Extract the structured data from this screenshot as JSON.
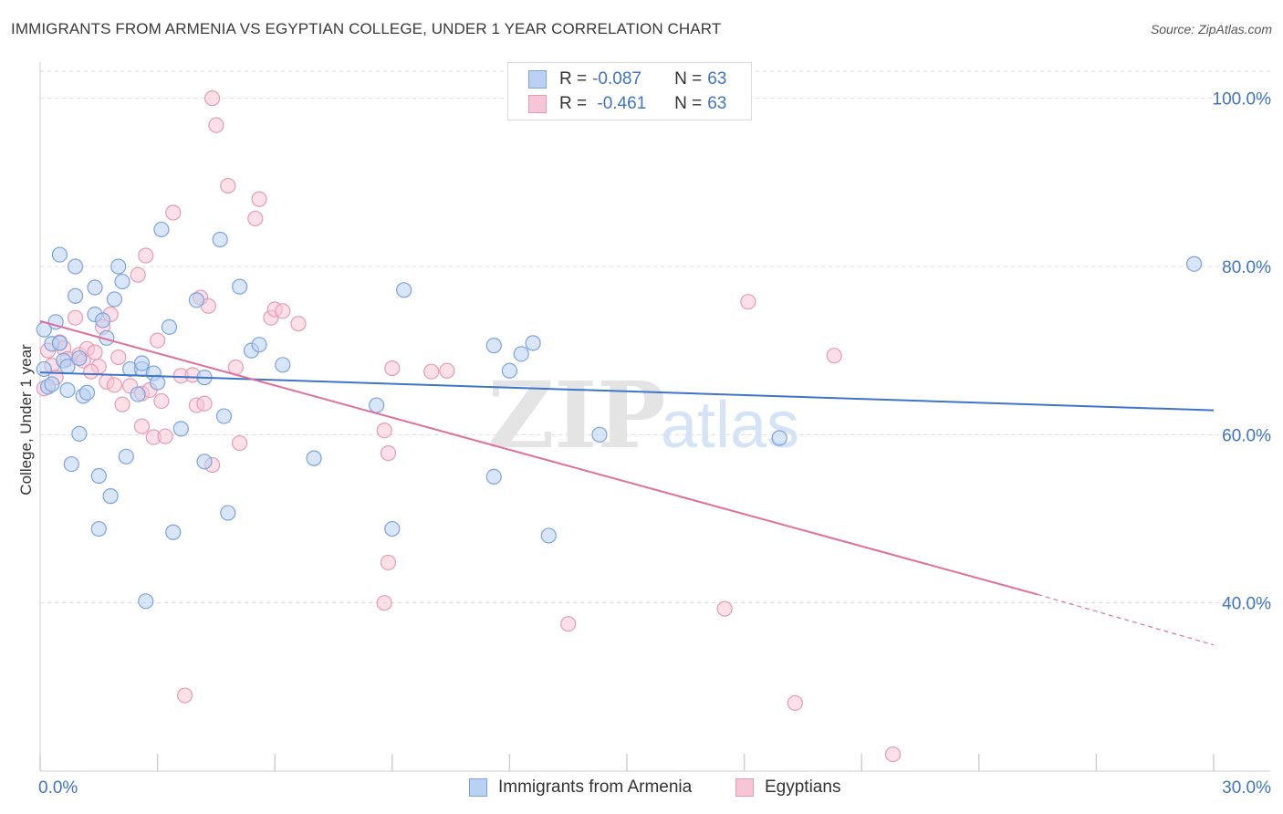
{
  "title": "IMMIGRANTS FROM ARMENIA VS EGYPTIAN COLLEGE, UNDER 1 YEAR CORRELATION CHART",
  "source": "Source: ZipAtlas.com",
  "watermark": {
    "zip": "ZIP",
    "atlas": "atlas"
  },
  "colors": {
    "blue": "#3f74c9",
    "blue_fill": "#b9d1f3",
    "pink": "#e0709a",
    "pink_fill": "#f7c6d6",
    "grid": "#dcdcdc",
    "axis_label": "#3f74c9"
  },
  "legend": {
    "rows": [
      {
        "r_label": "R =",
        "r_value": "-0.087",
        "n_label": "N =",
        "n_value": "63"
      },
      {
        "r_label": "R =",
        "r_value": " -0.461",
        "n_label": "N =",
        "n_value": "63"
      }
    ]
  },
  "bottom_legend": {
    "series1": "Immigrants from Armenia",
    "series2": "Egyptians"
  },
  "chart_data": {
    "type": "scatter",
    "title": "IMMIGRANTS FROM ARMENIA VS EGYPTIAN COLLEGE, UNDER 1 YEAR CORRELATION CHART",
    "xlabel": "",
    "ylabel": "College, Under 1 year",
    "xlim": [
      0,
      30
    ],
    "ylim": [
      20,
      103
    ],
    "x_tick_labels": [
      "0.0%",
      "30.0%"
    ],
    "y_ticks": [
      40,
      60,
      80,
      100
    ],
    "y_tick_labels": [
      "40.0%",
      "60.0%",
      "80.0%",
      "100.0%"
    ],
    "grid": true,
    "series": [
      {
        "name": "Immigrants from Armenia",
        "r": -0.087,
        "n": 63,
        "trend": {
          "x0": 0,
          "y0": 67.4,
          "x1": 30,
          "y1": 62.9
        },
        "points": [
          [
            0.1,
            72.5
          ],
          [
            0.1,
            67.8
          ],
          [
            0.2,
            65.7
          ],
          [
            0.3,
            70.8
          ],
          [
            0.4,
            73.4
          ],
          [
            0.5,
            70.9
          ],
          [
            0.6,
            68.8
          ],
          [
            0.7,
            68.1
          ],
          [
            0.5,
            81.4
          ],
          [
            0.9,
            80.0
          ],
          [
            0.9,
            76.5
          ],
          [
            0.7,
            65.3
          ],
          [
            1.1,
            64.6
          ],
          [
            1.2,
            65.0
          ],
          [
            1.0,
            60.1
          ],
          [
            0.8,
            56.5
          ],
          [
            1.4,
            77.5
          ],
          [
            1.4,
            74.3
          ],
          [
            1.6,
            73.6
          ],
          [
            1.7,
            71.5
          ],
          [
            1.5,
            55.1
          ],
          [
            1.8,
            52.7
          ],
          [
            1.5,
            48.8
          ],
          [
            2.0,
            80.0
          ],
          [
            1.9,
            76.1
          ],
          [
            2.1,
            78.2
          ],
          [
            2.3,
            67.8
          ],
          [
            2.2,
            57.4
          ],
          [
            2.5,
            64.8
          ],
          [
            2.6,
            67.8
          ],
          [
            2.6,
            68.5
          ],
          [
            2.7,
            40.2
          ],
          [
            2.9,
            67.3
          ],
          [
            3.1,
            84.4
          ],
          [
            3.3,
            72.8
          ],
          [
            3.4,
            48.4
          ],
          [
            3.6,
            60.7
          ],
          [
            4.0,
            76.0
          ],
          [
            4.2,
            66.8
          ],
          [
            4.2,
            56.8
          ],
          [
            4.6,
            83.2
          ],
          [
            4.7,
            62.2
          ],
          [
            4.8,
            50.7
          ],
          [
            5.1,
            77.6
          ],
          [
            5.4,
            70.0
          ],
          [
            5.6,
            70.7
          ],
          [
            6.2,
            68.3
          ],
          [
            7.0,
            57.2
          ],
          [
            9.3,
            77.2
          ],
          [
            8.6,
            63.5
          ],
          [
            9.0,
            48.8
          ],
          [
            11.6,
            70.6
          ],
          [
            11.6,
            55.0
          ],
          [
            12.0,
            67.6
          ],
          [
            12.3,
            69.6
          ],
          [
            12.6,
            70.9
          ],
          [
            13.0,
            48.0
          ],
          [
            14.3,
            60.0
          ],
          [
            18.9,
            59.6
          ],
          [
            29.5,
            80.3
          ],
          [
            0.3,
            66.0
          ],
          [
            1.0,
            69.1
          ],
          [
            3.0,
            66.2
          ]
        ]
      },
      {
        "name": "Egyptians",
        "r": -0.461,
        "n": 63,
        "trend": {
          "x0": 0,
          "y0": 73.5,
          "x1": 25.5,
          "y1": 41.0
        },
        "trend_dashed": {
          "x0": 25.5,
          "y0": 41.0,
          "x1": 30,
          "y1": 35.0
        },
        "points": [
          [
            0.1,
            65.5
          ],
          [
            0.3,
            68.2
          ],
          [
            0.4,
            66.8
          ],
          [
            0.5,
            71.0
          ],
          [
            0.6,
            70.3
          ],
          [
            0.7,
            69.0
          ],
          [
            0.9,
            73.9
          ],
          [
            1.0,
            69.5
          ],
          [
            1.1,
            68.8
          ],
          [
            1.2,
            70.2
          ],
          [
            1.4,
            69.8
          ],
          [
            1.5,
            68.1
          ],
          [
            1.6,
            72.8
          ],
          [
            1.7,
            66.3
          ],
          [
            1.8,
            74.3
          ],
          [
            1.9,
            65.9
          ],
          [
            2.0,
            69.2
          ],
          [
            2.1,
            63.6
          ],
          [
            2.3,
            65.8
          ],
          [
            2.5,
            79.0
          ],
          [
            2.6,
            64.9
          ],
          [
            2.6,
            61.0
          ],
          [
            2.7,
            81.3
          ],
          [
            2.8,
            65.3
          ],
          [
            2.9,
            59.7
          ],
          [
            3.0,
            71.2
          ],
          [
            3.1,
            64.0
          ],
          [
            3.2,
            59.8
          ],
          [
            3.4,
            86.4
          ],
          [
            3.6,
            67.0
          ],
          [
            3.7,
            29.0
          ],
          [
            3.9,
            67.1
          ],
          [
            4.0,
            63.5
          ],
          [
            4.1,
            76.3
          ],
          [
            4.2,
            63.7
          ],
          [
            4.3,
            75.3
          ],
          [
            4.4,
            56.4
          ],
          [
            4.5,
            96.8
          ],
          [
            4.4,
            100.0
          ],
          [
            4.8,
            89.6
          ],
          [
            5.1,
            59.0
          ],
          [
            5.5,
            85.7
          ],
          [
            5.6,
            88.0
          ],
          [
            5.9,
            73.9
          ],
          [
            6.0,
            74.9
          ],
          [
            6.2,
            74.7
          ],
          [
            6.6,
            73.2
          ],
          [
            8.8,
            60.5
          ],
          [
            8.9,
            57.8
          ],
          [
            8.9,
            44.8
          ],
          [
            8.8,
            40.0
          ],
          [
            9.0,
            67.9
          ],
          [
            10.0,
            67.5
          ],
          [
            10.4,
            67.6
          ],
          [
            13.5,
            37.5
          ],
          [
            17.5,
            39.3
          ],
          [
            18.1,
            75.8
          ],
          [
            19.3,
            28.1
          ],
          [
            20.3,
            69.4
          ],
          [
            21.8,
            22.0
          ],
          [
            0.2,
            70.0
          ],
          [
            1.3,
            67.5
          ],
          [
            5.0,
            68.0
          ]
        ]
      }
    ]
  }
}
